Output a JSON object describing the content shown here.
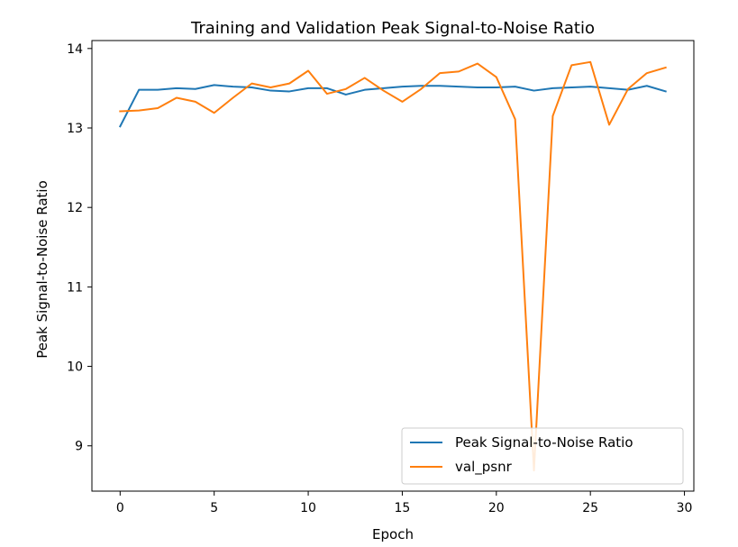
{
  "chart_data": {
    "type": "line",
    "title": "Training and Validation Peak Signal-to-Noise Ratio",
    "xlabel": "Epoch",
    "ylabel": "Peak Signal-to-Noise Ratio",
    "xlim": [
      -1.5,
      30.5
    ],
    "ylim": [
      8.43,
      14.1
    ],
    "xticks": [
      0,
      5,
      10,
      15,
      20,
      25,
      30
    ],
    "yticks": [
      9,
      10,
      11,
      12,
      13,
      14
    ],
    "grid": false,
    "legend_position": "lower-right",
    "x": [
      0,
      1,
      2,
      3,
      4,
      5,
      6,
      7,
      8,
      9,
      10,
      11,
      12,
      13,
      14,
      15,
      16,
      17,
      18,
      19,
      20,
      21,
      22,
      23,
      24,
      25,
      26,
      27,
      28,
      29
    ],
    "series": [
      {
        "name": "Peak Signal-to-Noise Ratio",
        "color": "#1f77b4",
        "values": [
          13.02,
          13.48,
          13.48,
          13.5,
          13.49,
          13.54,
          13.52,
          13.51,
          13.47,
          13.46,
          13.5,
          13.5,
          13.42,
          13.48,
          13.5,
          13.52,
          13.53,
          13.53,
          13.52,
          13.51,
          13.51,
          13.52,
          13.47,
          13.5,
          13.51,
          13.52,
          13.5,
          13.48,
          13.53,
          13.46
        ]
      },
      {
        "name": "val_psnr",
        "color": "#ff7f0e",
        "values": [
          13.21,
          13.22,
          13.25,
          13.38,
          13.33,
          13.19,
          13.38,
          13.56,
          13.51,
          13.56,
          13.72,
          13.43,
          13.49,
          13.63,
          13.47,
          13.33,
          13.49,
          13.69,
          13.71,
          13.81,
          13.64,
          13.11,
          8.69,
          13.15,
          13.79,
          13.83,
          13.04,
          13.49,
          13.69,
          13.76
        ]
      }
    ]
  }
}
